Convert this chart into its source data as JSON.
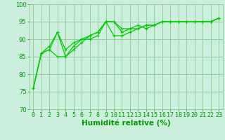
{
  "title": "",
  "xlabel": "Humidité relative (%)",
  "ylabel": "",
  "xlim": [
    -0.5,
    23.5
  ],
  "ylim": [
    70,
    100
  ],
  "yticks": [
    70,
    75,
    80,
    85,
    90,
    95,
    100
  ],
  "xticks": [
    0,
    1,
    2,
    3,
    4,
    5,
    6,
    7,
    8,
    9,
    10,
    11,
    12,
    13,
    14,
    15,
    16,
    17,
    18,
    19,
    20,
    21,
    22,
    23
  ],
  "bg_color": "#cceedd",
  "line_color": "#00cc00",
  "grid_color": "#99cc99",
  "curves": [
    [
      76,
      86,
      87,
      92,
      85,
      87,
      89,
      91,
      92,
      95,
      95,
      92,
      93,
      94,
      93,
      94,
      95,
      95,
      95,
      95,
      95,
      95,
      95,
      96
    ],
    [
      76,
      86,
      87,
      85,
      85,
      88,
      90,
      90,
      91,
      95,
      95,
      93,
      93,
      93,
      94,
      94,
      95,
      95,
      95,
      95,
      95,
      95,
      95,
      96
    ],
    [
      76,
      86,
      88,
      92,
      87,
      89,
      90,
      91,
      92,
      95,
      91,
      91,
      92,
      93,
      94,
      94,
      95,
      95,
      95,
      95,
      95,
      95,
      95,
      96
    ]
  ],
  "font_color": "#009900",
  "tick_fontsize": 6.0,
  "xlabel_fontsize": 7.5,
  "marker": "+"
}
